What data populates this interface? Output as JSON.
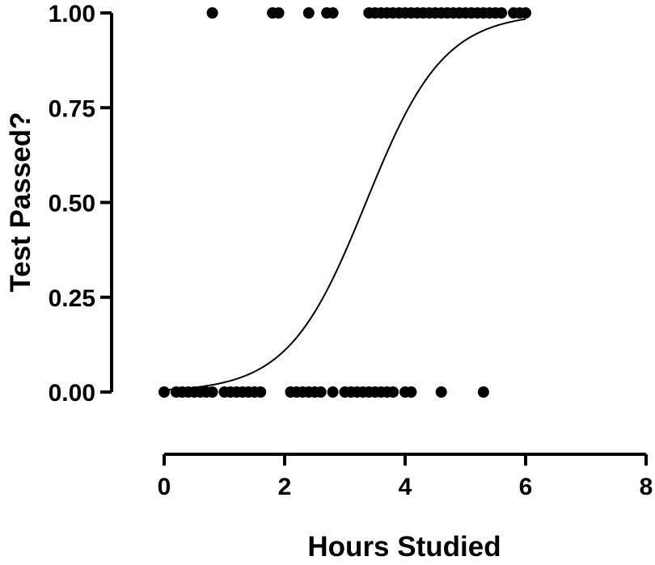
{
  "chart_data": {
    "type": "scatter",
    "title": "",
    "xlabel": "Hours Studied",
    "ylabel": "Test Passed?",
    "xlim": [
      0,
      8
    ],
    "ylim": [
      0,
      1
    ],
    "x_ticks": [
      0,
      2,
      4,
      6,
      8
    ],
    "x_tick_labels": [
      "0",
      "2",
      "4",
      "6",
      "8"
    ],
    "y_ticks": [
      0,
      0.25,
      0.5,
      0.75,
      1
    ],
    "y_tick_labels": [
      "0.00",
      "0.25",
      "0.50",
      "0.75",
      "1.00"
    ],
    "grid": false,
    "legend": "none",
    "series": [
      {
        "kind": "points",
        "points": [
          [
            0.8,
            1
          ],
          [
            1.8,
            1
          ],
          [
            1.9,
            1
          ],
          [
            2.4,
            1
          ],
          [
            2.7,
            1
          ],
          [
            2.8,
            1
          ],
          [
            3.4,
            1
          ],
          [
            3.5,
            1
          ],
          [
            3.6,
            1
          ],
          [
            3.7,
            1
          ],
          [
            3.8,
            1
          ],
          [
            3.9,
            1
          ],
          [
            4.0,
            1
          ],
          [
            4.1,
            1
          ],
          [
            4.2,
            1
          ],
          [
            4.3,
            1
          ],
          [
            4.4,
            1
          ],
          [
            4.5,
            1
          ],
          [
            4.6,
            1
          ],
          [
            4.7,
            1
          ],
          [
            4.8,
            1
          ],
          [
            4.9,
            1
          ],
          [
            5.0,
            1
          ],
          [
            5.1,
            1
          ],
          [
            5.2,
            1
          ],
          [
            5.3,
            1
          ],
          [
            5.4,
            1
          ],
          [
            5.5,
            1
          ],
          [
            5.6,
            1
          ],
          [
            5.8,
            1
          ],
          [
            5.9,
            1
          ],
          [
            6.0,
            1
          ],
          [
            0.0,
            0
          ],
          [
            0.2,
            0
          ],
          [
            0.3,
            0
          ],
          [
            0.4,
            0
          ],
          [
            0.5,
            0
          ],
          [
            0.6,
            0
          ],
          [
            0.7,
            0
          ],
          [
            0.8,
            0
          ],
          [
            1.0,
            0
          ],
          [
            1.1,
            0
          ],
          [
            1.2,
            0
          ],
          [
            1.3,
            0
          ],
          [
            1.4,
            0
          ],
          [
            1.5,
            0
          ],
          [
            1.6,
            0
          ],
          [
            2.1,
            0
          ],
          [
            2.2,
            0
          ],
          [
            2.3,
            0
          ],
          [
            2.4,
            0
          ],
          [
            2.5,
            0
          ],
          [
            2.6,
            0
          ],
          [
            2.8,
            0
          ],
          [
            3.0,
            0
          ],
          [
            3.1,
            0
          ],
          [
            3.2,
            0
          ],
          [
            3.3,
            0
          ],
          [
            3.4,
            0
          ],
          [
            3.5,
            0
          ],
          [
            3.6,
            0
          ],
          [
            3.7,
            0
          ],
          [
            3.8,
            0
          ],
          [
            4.0,
            0
          ],
          [
            4.1,
            0
          ],
          [
            4.6,
            0
          ],
          [
            5.3,
            0
          ]
        ]
      },
      {
        "kind": "logistic-curve",
        "x_start": 0,
        "x_end": 6,
        "midpoint": 3.35,
        "slope": 1.55
      }
    ]
  }
}
